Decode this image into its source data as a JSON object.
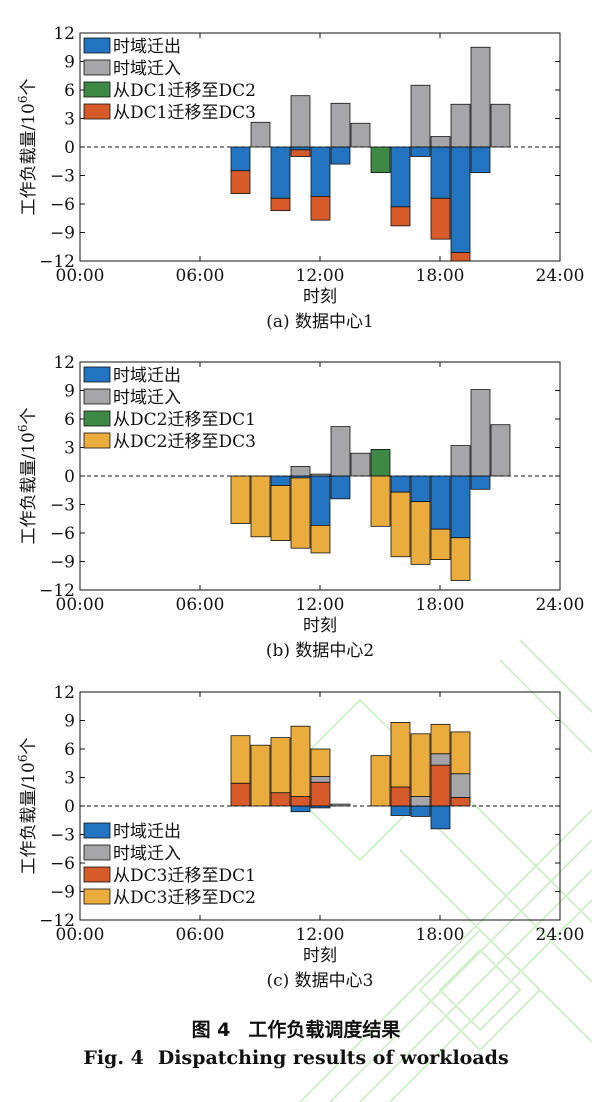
{
  "figure": {
    "caption_cn_label": "图 4",
    "caption_cn_text": "工作负载调度结果",
    "caption_en_label": "Fig. 4",
    "caption_en_text": "Dispatching results of workloads"
  },
  "colors": {
    "blue": "#2374c0",
    "gray": "#a6a6a8",
    "green": "#3e8a45",
    "red": "#d65a2a",
    "orange": "#eaad3d",
    "watermark": "#c8ecc0"
  },
  "chart_data": [
    {
      "type": "bar",
      "stacked": true,
      "subtitle": "(a) 数据中心1",
      "xlabel": "时刻",
      "ylabel": "工作负载量/10",
      "ylabel_sup": "6",
      "ylabel_unit": "个",
      "xlim": [
        0,
        24
      ],
      "ylim": [
        -12,
        12
      ],
      "xticks": [
        "00:00",
        "06:00",
        "12:00",
        "18:00",
        "24:00"
      ],
      "yticks": [
        "12",
        "9",
        "6",
        "3",
        "0",
        "-3",
        "-6",
        "-9",
        "-12"
      ],
      "legend_position": "top-left",
      "x": [
        8,
        9,
        10,
        11,
        12,
        13,
        14,
        15,
        16,
        17,
        18,
        19,
        20,
        21
      ],
      "series": [
        {
          "name": "时域迁出",
          "color": "blue",
          "values": [
            -2.5,
            0,
            -5.4,
            -0.3,
            -5.2,
            -1.8,
            0,
            0,
            -6.3,
            -1.0,
            -5.4,
            -11.1,
            -2.7,
            0
          ]
        },
        {
          "name": "时域迁入",
          "color": "gray",
          "values": [
            0,
            2.6,
            0,
            5.4,
            0,
            4.6,
            2.5,
            0,
            0,
            6.5,
            1.1,
            4.5,
            10.5,
            4.5
          ]
        },
        {
          "name": "从DC1迁移至DC2",
          "color": "green",
          "values": [
            0,
            0,
            0,
            0,
            0,
            0,
            0,
            -2.7,
            0,
            0,
            0,
            0,
            0,
            0
          ]
        },
        {
          "name": "从DC1迁移至DC3",
          "color": "red",
          "values": [
            -2.4,
            0,
            -1.3,
            -0.7,
            -2.5,
            0,
            0,
            0,
            -2.0,
            0,
            -4.3,
            -0.9,
            0,
            0
          ]
        }
      ]
    },
    {
      "type": "bar",
      "stacked": true,
      "subtitle": "(b) 数据中心2",
      "xlabel": "时刻",
      "ylabel": "工作负载量/10",
      "ylabel_sup": "6",
      "ylabel_unit": "个",
      "xlim": [
        0,
        24
      ],
      "ylim": [
        -12,
        12
      ],
      "xticks": [
        "00:00",
        "06:00",
        "12:00",
        "18:00",
        "24:00"
      ],
      "yticks": [
        "12",
        "9",
        "6",
        "3",
        "0",
        "-3",
        "-6",
        "-9",
        "-12"
      ],
      "legend_position": "top-left",
      "x": [
        8,
        9,
        10,
        11,
        12,
        13,
        14,
        15,
        16,
        17,
        18,
        19,
        20,
        21
      ],
      "series": [
        {
          "name": "时域迁出",
          "color": "blue",
          "values": [
            0,
            0,
            -1.0,
            -0.2,
            -5.2,
            -2.4,
            0,
            0,
            -1.7,
            -2.7,
            -5.6,
            -6.5,
            -1.4,
            0
          ]
        },
        {
          "name": "时域迁入",
          "color": "gray",
          "values": [
            0,
            0,
            0,
            1.0,
            0.2,
            5.2,
            2.4,
            0,
            0,
            0,
            0,
            3.2,
            9.1,
            5.4
          ]
        },
        {
          "name": "从DC2迁移至DC1",
          "color": "green",
          "values": [
            0,
            0,
            0,
            0,
            0,
            0,
            0,
            2.8,
            0,
            0,
            0,
            0,
            0,
            0
          ]
        },
        {
          "name": "从DC2迁移至DC3",
          "color": "orange",
          "values": [
            -5.0,
            -6.4,
            -5.8,
            -7.4,
            -2.9,
            0,
            0,
            -5.3,
            -6.8,
            -6.6,
            -3.2,
            -4.5,
            0,
            0
          ]
        }
      ]
    },
    {
      "type": "bar",
      "stacked": true,
      "subtitle": "(c) 数据中心3",
      "xlabel": "时刻",
      "ylabel": "工作负载量/10",
      "ylabel_sup": "6",
      "ylabel_unit": "个",
      "xlim": [
        0,
        24
      ],
      "ylim": [
        -12,
        12
      ],
      "xticks": [
        "00:00",
        "06:00",
        "12:00",
        "18:00",
        "24:00"
      ],
      "yticks": [
        "12",
        "9",
        "6",
        "3",
        "0",
        "-3",
        "-6",
        "-9",
        "-12"
      ],
      "legend_position": "bottom-left",
      "x": [
        8,
        9,
        10,
        11,
        12,
        13,
        14,
        15,
        16,
        17,
        18,
        19,
        20,
        21
      ],
      "series": [
        {
          "name": "时域迁出",
          "color": "blue",
          "values": [
            0,
            0,
            0,
            -0.6,
            -0.2,
            0,
            0,
            0,
            -1.0,
            -1.1,
            -2.4,
            0,
            0,
            0
          ]
        },
        {
          "name": "时域迁入",
          "color": "gray",
          "values": [
            0,
            0,
            0,
            0,
            0.6,
            0.2,
            0,
            0,
            0,
            1.0,
            1.2,
            2.5,
            0,
            0
          ]
        },
        {
          "name": "从DC3迁移至DC1",
          "color": "red",
          "values": [
            2.4,
            0,
            1.4,
            1.0,
            2.5,
            0,
            0,
            0,
            2.0,
            0,
            4.3,
            0.9,
            0,
            0
          ]
        },
        {
          "name": "从DC3迁移至DC2",
          "color": "orange",
          "values": [
            5.0,
            6.4,
            5.8,
            7.4,
            2.9,
            0,
            0,
            5.3,
            6.8,
            6.6,
            3.1,
            4.4,
            0,
            0
          ]
        }
      ]
    }
  ]
}
